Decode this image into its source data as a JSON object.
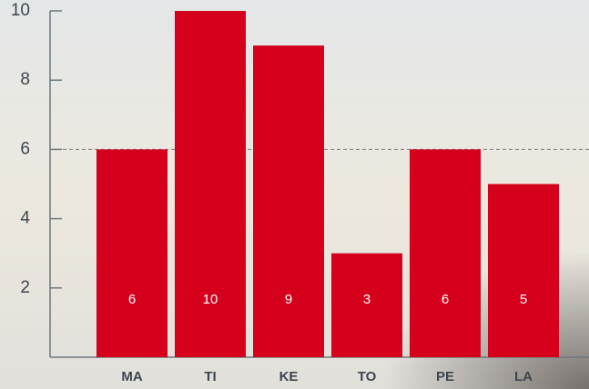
{
  "chart_data": {
    "type": "bar",
    "categories": [
      "MA",
      "TI",
      "KE",
      "TO",
      "PE",
      "LA"
    ],
    "values": [
      6,
      10,
      9,
      3,
      6,
      5
    ],
    "color": "#d5001c",
    "ylim": [
      0,
      10
    ],
    "yticks": [
      2,
      4,
      6,
      8,
      10
    ],
    "reference_line": 6
  }
}
